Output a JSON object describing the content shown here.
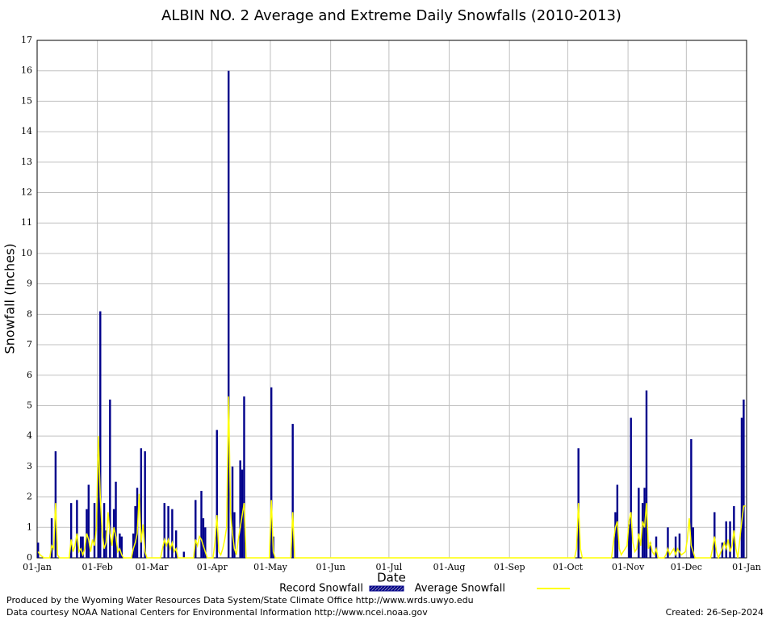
{
  "chart_data": {
    "type": "bar",
    "title": "ALBIN NO. 2 Average and Extreme Daily Snowfalls (2010-2013)",
    "x_label": "Date",
    "y_label": "Snowfall (Inches)",
    "xlim": [
      0,
      365
    ],
    "ylim": [
      0,
      17
    ],
    "xticks": [
      {
        "value": 0,
        "label": "01-Jan"
      },
      {
        "value": 31,
        "label": "01-Feb"
      },
      {
        "value": 59,
        "label": "01-Mar"
      },
      {
        "value": 90,
        "label": "01-Apr"
      },
      {
        "value": 120,
        "label": "01-May"
      },
      {
        "value": 151,
        "label": "01-Jun"
      },
      {
        "value": 181,
        "label": "01-Jul"
      },
      {
        "value": 212,
        "label": "01-Aug"
      },
      {
        "value": 243,
        "label": "01-Sep"
      },
      {
        "value": 273,
        "label": "01-Oct"
      },
      {
        "value": 304,
        "label": "01-Nov"
      },
      {
        "value": 334,
        "label": "01-Dec"
      },
      {
        "value": 365,
        "label": "01-Jan"
      }
    ],
    "yticks": [
      0,
      1,
      2,
      3,
      4,
      5,
      6,
      7,
      8,
      9,
      10,
      11,
      12,
      13,
      14,
      15,
      16,
      17
    ],
    "grid": true,
    "series": [
      {
        "name": "Record Snowfall",
        "color": "#00008b",
        "x": [
          0,
          7,
          9,
          17,
          20,
          22,
          23,
          25,
          26,
          29,
          31,
          32,
          34,
          35,
          37,
          39,
          40,
          42,
          43,
          49,
          50,
          51,
          53,
          55,
          65,
          67,
          69,
          71,
          75,
          81,
          84,
          85,
          86,
          92,
          98,
          100,
          101,
          104,
          105,
          106,
          120,
          121,
          131,
          278,
          297,
          298,
          304,
          305,
          309,
          311,
          312,
          313,
          315,
          318,
          324,
          328,
          330,
          336,
          337,
          348,
          352,
          354,
          356,
          358,
          362,
          363
        ],
        "values": [
          0.5,
          1.3,
          3.5,
          1.8,
          1.9,
          0.7,
          0.7,
          1.6,
          2.4,
          1.8,
          3.4,
          8.1,
          1.8,
          0.9,
          5.2,
          1.6,
          2.5,
          0.8,
          0.7,
          0.8,
          1.7,
          2.3,
          3.6,
          3.5,
          1.8,
          1.7,
          1.6,
          0.9,
          0.2,
          1.9,
          2.2,
          1.3,
          1.0,
          4.2,
          16.0,
          3.0,
          1.5,
          3.2,
          2.9,
          5.3,
          5.6,
          0.7,
          4.4,
          3.6,
          1.5,
          2.4,
          1.1,
          4.6,
          2.3,
          1.8,
          2.3,
          5.5,
          0.5,
          0.7,
          1.0,
          0.7,
          0.8,
          3.9,
          1.0,
          1.5,
          0.5,
          1.2,
          1.2,
          1.7,
          4.6,
          5.2
        ]
      },
      {
        "name": "Average Snowfall",
        "color": "#ffff00",
        "type": "line",
        "x": [
          0,
          1,
          3,
          6,
          7,
          8,
          9,
          10,
          11,
          16,
          17,
          18,
          19,
          20,
          21,
          22,
          23,
          24,
          25,
          26,
          27,
          28,
          29,
          30,
          31,
          32,
          33,
          34,
          35,
          36,
          37,
          38,
          39,
          40,
          41,
          42,
          43,
          44,
          48,
          49,
          50,
          51,
          52,
          53,
          54,
          55,
          56,
          63,
          64,
          65,
          66,
          67,
          68,
          69,
          70,
          71,
          72,
          80,
          81,
          82,
          83,
          84,
          85,
          86,
          87,
          90,
          91,
          92,
          93,
          94,
          95,
          96,
          97,
          98,
          99,
          100,
          101,
          102,
          103,
          104,
          105,
          106,
          107,
          119,
          120,
          121,
          122,
          130,
          131,
          132,
          276,
          277,
          278,
          279,
          280,
          295,
          296,
          297,
          298,
          299,
          300,
          303,
          304,
          305,
          306,
          307,
          308,
          309,
          310,
          311,
          312,
          313,
          314,
          315,
          316,
          317,
          318,
          319,
          322,
          323,
          324,
          325,
          327,
          328,
          329,
          330,
          331,
          333,
          334,
          335,
          336,
          337,
          338,
          346,
          347,
          348,
          349,
          350,
          352,
          353,
          354,
          355,
          356,
          357,
          358,
          359,
          360,
          362,
          363,
          364
        ],
        "values": [
          0.2,
          0.1,
          0,
          0,
          0.4,
          0.3,
          1.8,
          0.1,
          0,
          0,
          0.6,
          0.2,
          0.4,
          0.8,
          0.2,
          0.3,
          0.1,
          0.3,
          0.8,
          0.6,
          0.2,
          0.6,
          0.4,
          1.0,
          4.0,
          2.0,
          0.8,
          0.3,
          0.5,
          1.5,
          0.8,
          0.4,
          1.0,
          0.7,
          0.2,
          0.3,
          0.1,
          0,
          0,
          0.3,
          0.5,
          0.8,
          2.1,
          0.5,
          1.1,
          0.2,
          0,
          0,
          0.3,
          0.6,
          0.4,
          0.6,
          0.3,
          0.5,
          0.2,
          0.3,
          0,
          0,
          0.6,
          0.4,
          0.7,
          0.6,
          0.4,
          0.2,
          0,
          0,
          0.5,
          1.4,
          0.2,
          0.1,
          0.3,
          0.6,
          1.0,
          5.3,
          1.5,
          0.8,
          0.3,
          0.1,
          0.6,
          1.0,
          1.4,
          1.8,
          0,
          0,
          1.9,
          0.2,
          0,
          0,
          1.5,
          0,
          0,
          0.3,
          1.8,
          0.3,
          0,
          0,
          0.5,
          1.0,
          1.2,
          0.3,
          0.1,
          0.4,
          1.2,
          1.5,
          0.5,
          0.2,
          0.3,
          0.8,
          0.4,
          1.2,
          1.0,
          1.8,
          0.3,
          0.5,
          0.2,
          0.1,
          0.3,
          0,
          0,
          0.1,
          0.3,
          0.1,
          0.3,
          0.1,
          0.3,
          0.2,
          0.1,
          0.2,
          0.6,
          1.3,
          0.4,
          0.2,
          0,
          0,
          0.3,
          0.7,
          0.2,
          0,
          0.3,
          0.5,
          0.3,
          0.6,
          0.2,
          0.4,
          0.9,
          0.3,
          0,
          1.2,
          1.7,
          1.7
        ]
      }
    ],
    "footer": [
      "Produced by the Wyoming Water Resources Data System/State Climate Office http://www.wrds.uwyo.edu",
      "Data courtesy NOAA National Centers for Environmental Information http://www.ncei.noaa.gov"
    ],
    "created": "Created:  26-Sep-2024"
  }
}
